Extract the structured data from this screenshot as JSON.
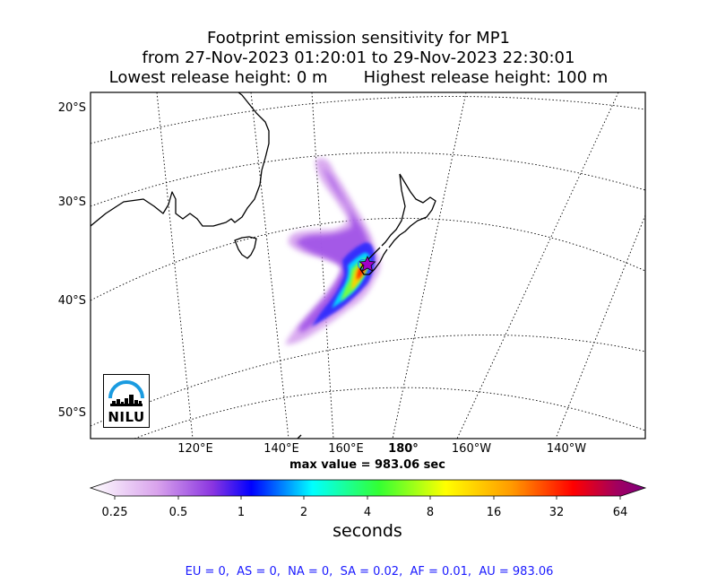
{
  "title": {
    "line1": "Footprint emission sensitivity for MP1",
    "line2": "from 27-Nov-2023 01:20:01 to 29-Nov-2023 22:30:01",
    "line3": "Lowest release height: 0 m       Highest release height: 100 m"
  },
  "map": {
    "latitude_labels": [
      "20°S",
      "30°S",
      "40°S",
      "50°S"
    ],
    "longitude_labels": [
      "120°E",
      "140°E",
      "160°E",
      "180°",
      "160°W",
      "140°W"
    ],
    "release_marker": "star-marker",
    "logo_text": "NILU",
    "colors": {
      "coastline": "#000000",
      "graticule": "#000000",
      "release_star": "#a000c8"
    }
  },
  "max_value": "max value = 983.06 sec",
  "colorbar": {
    "ticks": [
      "0.25",
      "0.5",
      "1",
      "2",
      "4",
      "8",
      "16",
      "32",
      "64"
    ],
    "label": "seconds",
    "colors": [
      "#ffffff",
      "#d9a3ec",
      "#8a35e0",
      "#0000ff",
      "#00ffff",
      "#33ff33",
      "#ffff00",
      "#ff9900",
      "#ff0000",
      "#a00060",
      "#7f007f"
    ]
  },
  "region_totals": "EU = 0,  AS = 0,  NA = 0,  SA = 0.02,  AF = 0.01,  AU = 983.06"
}
